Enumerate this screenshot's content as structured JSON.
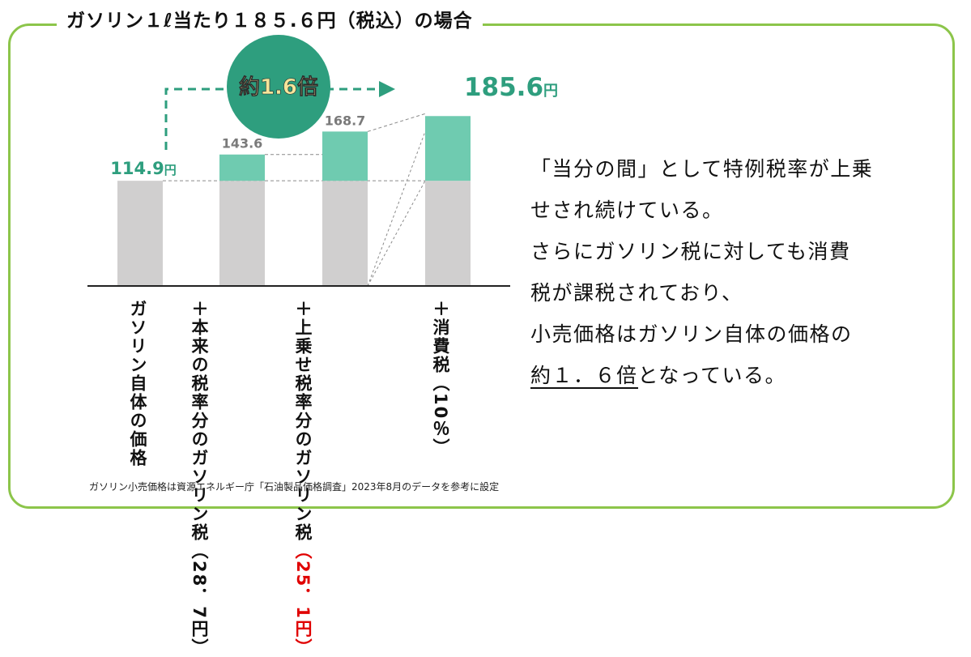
{
  "title": "ガソリン１ℓ当たり１８５.６円（税込）の場合",
  "chart_data": {
    "type": "bar",
    "stacked": true,
    "categories": [
      "ガソリン自体の価格",
      "＋本来の税率分のガソリン税（28．7円）",
      "＋上乗せ税率分のガソリン税（25．1円）",
      "＋消費税（10％）"
    ],
    "series": [
      {
        "values": [
          114.9,
          114.9,
          114.9,
          114.9
        ],
        "color": "#d0cfcf"
      },
      {
        "values": [
          0,
          28.7,
          53.8,
          70.7
        ],
        "color": "#6fcbb0"
      }
    ],
    "totals": [
      114.9,
      143.6,
      168.7,
      185.6
    ],
    "value_labels": [
      "114.9",
      "143.6",
      "168.7",
      "185.6"
    ],
    "unit": "円",
    "ylim": [
      0,
      200
    ],
    "grid": false,
    "annotation": "約1.6倍",
    "colors": {
      "base": "#d0cfcf",
      "tax": "#6fcbb0",
      "accent": "#2e9e7e",
      "circle": "#2e9e7e",
      "annotation_text": "#f5e59a",
      "red": "#e00000",
      "frame": "#8cc54a"
    }
  },
  "x_labels": {
    "bar1": "ガソリン自体の価格",
    "bar2_line1": "＋本来の税率分の",
    "bar2_line2": "ガソリン税",
    "bar2_line3": "（28．7円）",
    "bar3_line1": "＋上乗せ税率分の",
    "bar3_line2": "ガソリン税",
    "bar3_line3": "（25．1円）",
    "bar4_line1": "＋消費税",
    "bar4_line2": "（10％）"
  },
  "note": {
    "line1": "「当分の間」として特例税率が上乗",
    "line2": "せされ続けている。",
    "line3": "さらにガソリン税に対しても消費",
    "line4": "税が課税されており、",
    "line5": "小売価格はガソリン自体の価格の",
    "line6_emph": "約１．６倍",
    "line6_rest": "となっている。"
  },
  "source": "ガソリン小売価格は資源エネルギー庁「石油製品価格調査」2023年8月のデータを参考に設定"
}
